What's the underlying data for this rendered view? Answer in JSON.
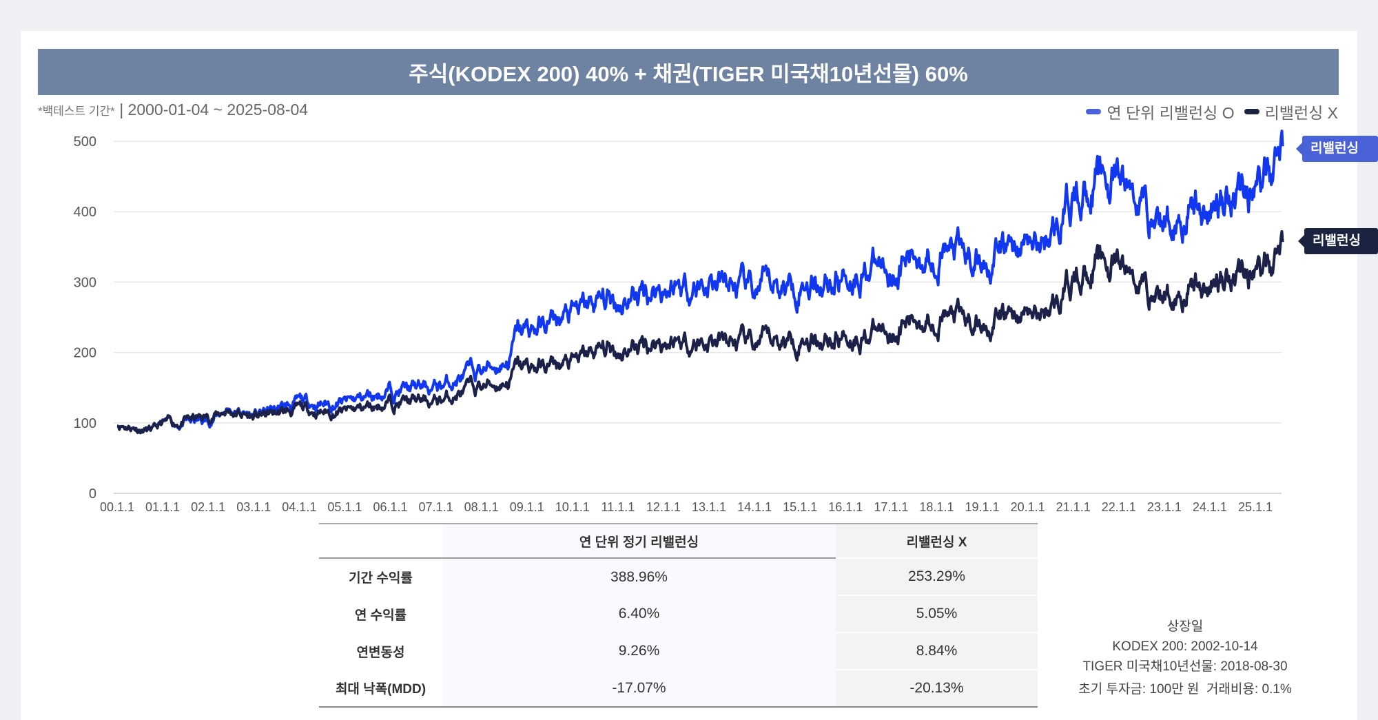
{
  "title": "주식(KODEX 200) 40% + 채권(TIGER 미국채10년선물) 60%",
  "period_label": "*백테스트 기간*",
  "period_value": "| 2000-01-04 ~ 2025-08-04",
  "end_tags": {
    "o": "리밸런싱 O",
    "x": "리밸런싱 X"
  },
  "colors": {
    "rebalance_o": "#1237f0",
    "rebalance_x": "#1b2148",
    "header": "#6e82a2"
  },
  "chart_data": {
    "type": "line",
    "title": "주식(KODEX 200) 40% + 채권(TIGER 미국채10년선물) 60%",
    "xlabel": "",
    "ylabel": "",
    "ylim": [
      0,
      500
    ],
    "xlim": [
      2000,
      2025.6
    ],
    "yticks": [
      "0",
      "100",
      "200",
      "300",
      "400",
      "500"
    ],
    "xticks": [
      "00.1.1",
      "01.1.1",
      "02.1.1",
      "03.1.1",
      "04.1.1",
      "05.1.1",
      "06.1.1",
      "07.1.1",
      "08.1.1",
      "09.1.1",
      "10.1.1",
      "11.1.1",
      "12.1.1",
      "13.1.1",
      "14.1.1",
      "15.1.1",
      "16.1.1",
      "17.1.1",
      "18.1.1",
      "19.1.1",
      "20.1.1",
      "21.1.1",
      "22.1.1",
      "23.1.1",
      "24.1.1",
      "25.1.1"
    ],
    "grid": true,
    "legend": "top-right",
    "series": [
      {
        "name": "연 단위 리밸런싱 O",
        "color": "#1237f0",
        "points": [
          [
            2000,
            100
          ],
          [
            2000.8,
            88
          ],
          [
            2001,
            98
          ],
          [
            2002,
            102
          ],
          [
            2002.4,
            120
          ],
          [
            2003,
            110
          ],
          [
            2004,
            128
          ],
          [
            2005,
            128
          ],
          [
            2006,
            147
          ],
          [
            2007,
            150
          ],
          [
            2008,
            175
          ],
          [
            2008.6,
            190
          ],
          [
            2008.8,
            228
          ],
          [
            2009,
            230
          ],
          [
            2010,
            252
          ],
          [
            2010.5,
            268
          ],
          [
            2011,
            276
          ],
          [
            2012,
            295
          ],
          [
            2013,
            298
          ],
          [
            2014,
            285
          ],
          [
            2015,
            302
          ],
          [
            2016,
            312
          ],
          [
            2016.5,
            325
          ],
          [
            2017,
            318
          ],
          [
            2018,
            352
          ],
          [
            2018.5,
            335
          ],
          [
            2019,
            330
          ],
          [
            2019.5,
            345
          ],
          [
            2020,
            358
          ],
          [
            2020.2,
            345
          ],
          [
            2020.6,
            378
          ],
          [
            2021,
            418
          ],
          [
            2021.5,
            448
          ],
          [
            2022,
            440
          ],
          [
            2022.5,
            412
          ],
          [
            2023,
            385
          ],
          [
            2023.5,
            408
          ],
          [
            2024,
            400
          ],
          [
            2024.5,
            445
          ],
          [
            2025,
            432
          ],
          [
            2025.4,
            455
          ],
          [
            2025.6,
            493
          ]
        ]
      },
      {
        "name": "리밸런싱 X",
        "color": "#1b2148",
        "points": [
          [
            2000,
            100
          ],
          [
            2000.8,
            88
          ],
          [
            2001,
            97
          ],
          [
            2002,
            108
          ],
          [
            2002.4,
            118
          ],
          [
            2003,
            108
          ],
          [
            2004,
            118
          ],
          [
            2005,
            115
          ],
          [
            2006,
            130
          ],
          [
            2007,
            130
          ],
          [
            2008,
            152
          ],
          [
            2008.6,
            160
          ],
          [
            2008.8,
            180
          ],
          [
            2009,
            178
          ],
          [
            2010,
            183
          ],
          [
            2010.5,
            200
          ],
          [
            2011,
            205
          ],
          [
            2012,
            218
          ],
          [
            2013,
            215
          ],
          [
            2014,
            210
          ],
          [
            2015,
            222
          ],
          [
            2016,
            226
          ],
          [
            2017,
            232
          ],
          [
            2018,
            258
          ],
          [
            2018.5,
            245
          ],
          [
            2019,
            240
          ],
          [
            2019.5,
            250
          ],
          [
            2020,
            257
          ],
          [
            2020.2,
            248
          ],
          [
            2020.6,
            272
          ],
          [
            2021,
            302
          ],
          [
            2021.5,
            330
          ],
          [
            2022,
            320
          ],
          [
            2022.5,
            295
          ],
          [
            2023,
            280
          ],
          [
            2023.5,
            295
          ],
          [
            2024,
            293
          ],
          [
            2024.5,
            325
          ],
          [
            2025,
            315
          ],
          [
            2025.4,
            320
          ],
          [
            2025.6,
            357
          ]
        ]
      }
    ]
  },
  "table": {
    "headers": [
      "",
      "연 단위 정기 리밸런싱",
      "리밸런싱 X"
    ],
    "rows": [
      {
        "label": "기간 수익률",
        "o": "388.96%",
        "x": "253.29%"
      },
      {
        "label": "연 수익률",
        "o": "6.40%",
        "x": "5.05%"
      },
      {
        "label": "연변동성",
        "o": "9.26%",
        "x": "8.84%"
      },
      {
        "label": "최대 낙폭(MDD)",
        "o": "-17.07%",
        "x": "-20.13%"
      }
    ]
  },
  "notes": {
    "listing_title": "상장일",
    "kodex": "KODEX 200: 2002-10-14",
    "tiger": "TIGER 미국채10년선물: 2018-08-30",
    "params": "초기 투자금: 100만 원  거래비용: 0.1%"
  }
}
